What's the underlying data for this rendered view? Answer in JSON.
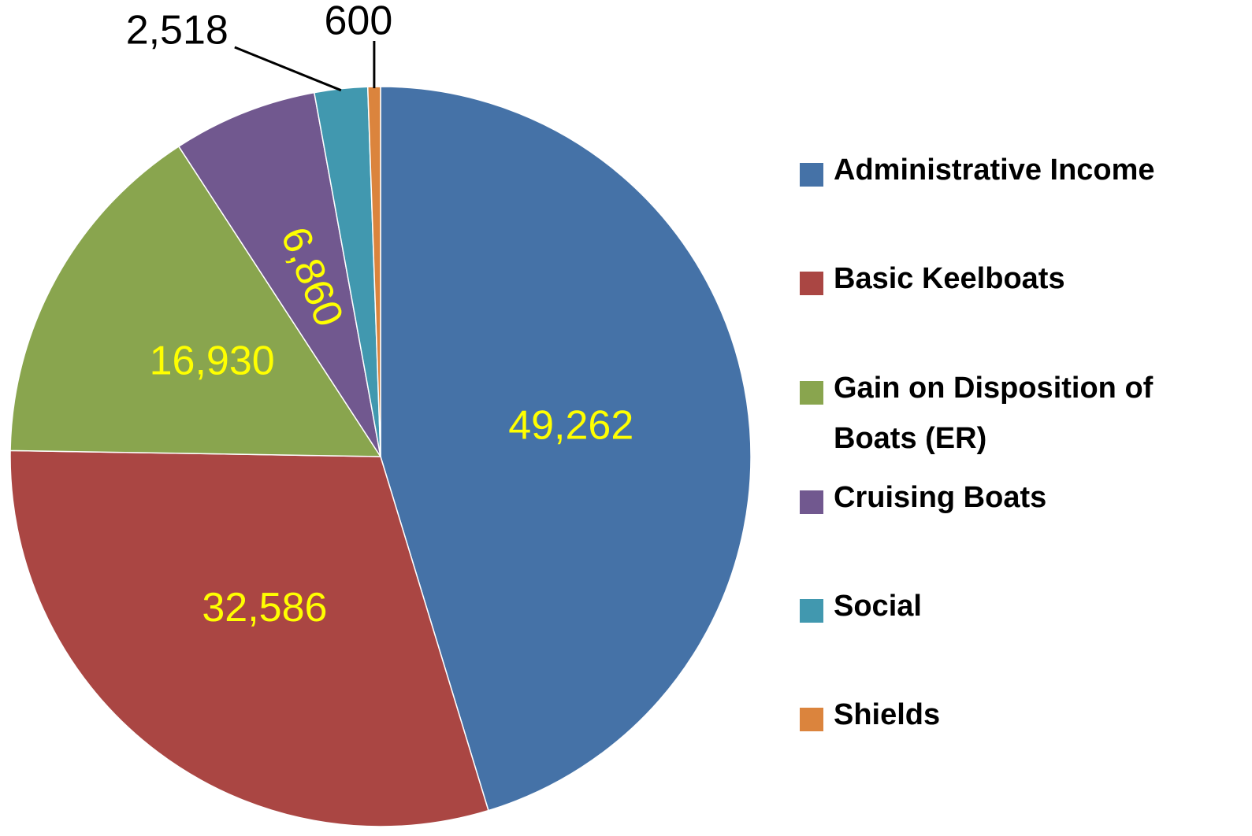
{
  "chart_data": {
    "type": "pie",
    "categories": [
      "Administrative Income",
      "Basic Keelboats",
      "Gain on Disposition of Boats (ER)",
      "Cruising Boats",
      "Social",
      "Shields"
    ],
    "values": [
      49262,
      32586,
      16930,
      6860,
      2518,
      600
    ],
    "value_labels": [
      "49,262",
      "32,586",
      "16,930",
      "6,860",
      "2,518",
      "600"
    ],
    "colors": [
      "#4572a7",
      "#aa4643",
      "#89a54e",
      "#71588f",
      "#4198af",
      "#db843d"
    ],
    "legend": "right"
  }
}
